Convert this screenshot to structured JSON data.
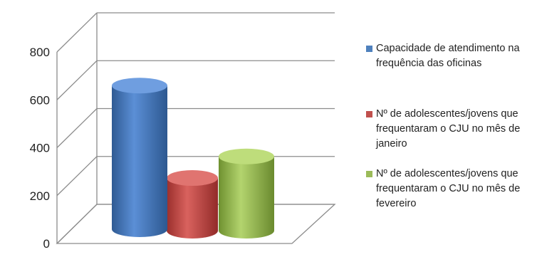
{
  "chart_data": {
    "type": "bar",
    "categories": [
      ""
    ],
    "series": [
      {
        "name": "Capacidade de atendimento na frequência das oficinas",
        "values": [
          600
        ],
        "color": "#4F81BD"
      },
      {
        "name": "Nº de adolescentes/jovens que frequentaram o CJU no mês de janeiro",
        "values": [
          220
        ],
        "color": "#C0504D"
      },
      {
        "name": "Nº de adolescentes/jovens que frequentaram o CJU no mês de fevereiro",
        "values": [
          310
        ],
        "color": "#9BBB59"
      }
    ],
    "yticks": [
      "0",
      "200",
      "400",
      "600",
      "800"
    ],
    "ylim": [
      0,
      800
    ],
    "grid": true,
    "legend_position": "right",
    "title": "",
    "xlabel": "",
    "ylabel": ""
  }
}
